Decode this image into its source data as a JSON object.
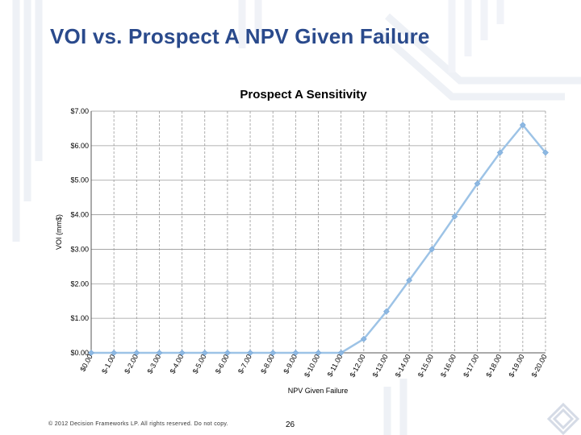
{
  "slide": {
    "title": "VOI vs. Prospect A NPV Given Failure",
    "footer_copyright": "© 2012 Decision Frameworks LP. All rights reserved. Do not copy.",
    "page_number": "26"
  },
  "colors": {
    "title": "#2a4a8c",
    "series_line": "#9dc3e6",
    "series_marker": "#8db8e2",
    "decor": "#e7ebf3"
  },
  "chart_data": {
    "type": "line",
    "title": "Prospect A Sensitivity",
    "xlabel": "NPV Given Failure",
    "ylabel": "VOI (mm$)",
    "categories": [
      "$0.00",
      "$-1.00",
      "$-2.00",
      "$-3.00",
      "$-4.00",
      "$-5.00",
      "$-6.00",
      "$-7.00",
      "$-8.00",
      "$-9.00",
      "$-10.00",
      "$-11.00",
      "$-12.00",
      "$-13.00",
      "$-14.00",
      "$-15.00",
      "$-16.00",
      "$-17.00",
      "$-18.00",
      "$-19.00",
      "$-20.00"
    ],
    "x": [
      0,
      -1,
      -2,
      -3,
      -4,
      -5,
      -6,
      -7,
      -8,
      -9,
      -10,
      -11,
      -12,
      -13,
      -14,
      -15,
      -16,
      -17,
      -18,
      -19,
      -20
    ],
    "y_ticks": [
      "$0.00",
      "$1.00",
      "$2.00",
      "$3.00",
      "$4.00",
      "$5.00",
      "$6.00",
      "$7.00"
    ],
    "ylim": [
      0,
      7
    ],
    "grid": {
      "horizontal": true,
      "vertical": true,
      "vertical_style": "dashed"
    },
    "legend": "none",
    "series": [
      {
        "values": [
          0,
          0,
          0,
          0,
          0,
          0,
          0,
          0,
          0,
          0,
          0,
          0,
          0.4,
          1.2,
          2.1,
          3.0,
          3.95,
          4.9,
          5.8,
          6.6,
          5.8
        ]
      }
    ]
  }
}
